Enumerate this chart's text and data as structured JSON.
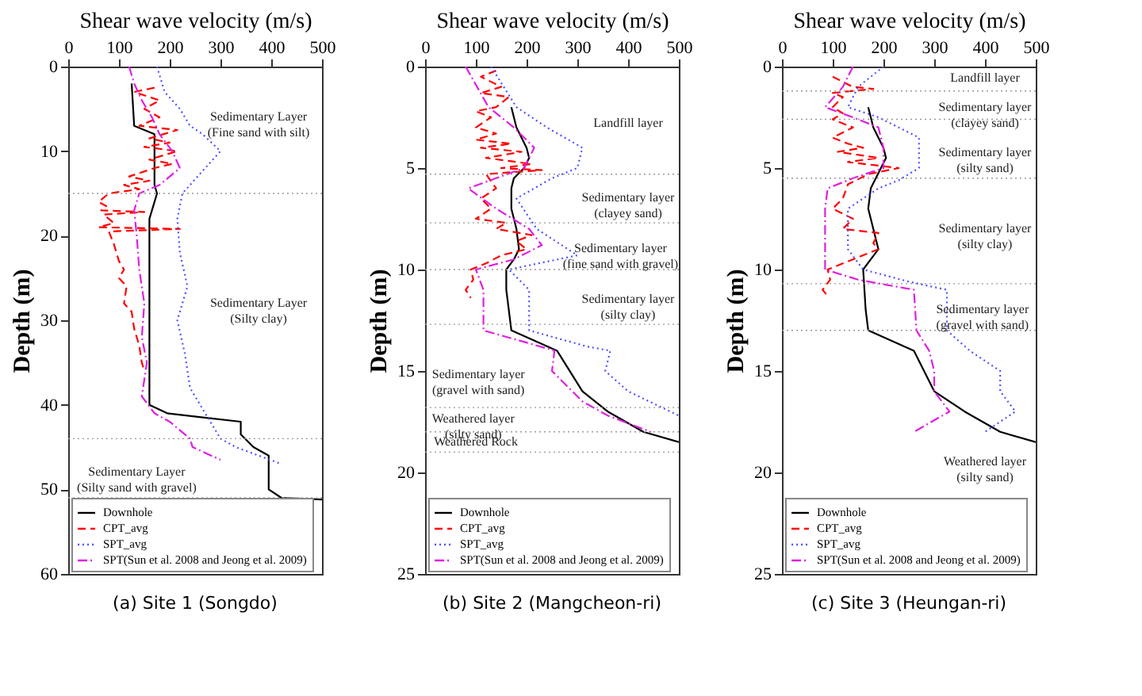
{
  "chart_data": [
    {
      "type": "line",
      "title": "(a) Site 1 (Songdo)",
      "xlabel": "Shear wave velocity (m/s)",
      "ylabel": "Depth (m)",
      "xlim": [
        0,
        500
      ],
      "xticks": [
        0,
        100,
        200,
        300,
        400,
        500
      ],
      "ylim": [
        60,
        0
      ],
      "yticks": [
        0,
        10,
        20,
        30,
        40,
        50,
        60
      ],
      "legend": "bottom left",
      "series": [
        {
          "name": "Downhole",
          "color": "#000000",
          "line_style": "solid",
          "x": [
            125,
            130,
            170,
            170,
            175,
            165,
            160,
            160,
            195,
            340,
            340,
            365,
            395,
            395,
            420,
            500
          ],
          "values": [
            2,
            7,
            8,
            14,
            15,
            17,
            18,
            40,
            41,
            42,
            43.5,
            45,
            46,
            50,
            51,
            51.2
          ]
        },
        {
          "name": "CPT_avg",
          "color": "#ff0000",
          "line_style": "dashed",
          "x": [
            170,
            130,
            180,
            150,
            180,
            140,
            215,
            160,
            200,
            150,
            215,
            160,
            205,
            170,
            120,
            160,
            110,
            140,
            80,
            60,
            75,
            65,
            150,
            70,
            90,
            60,
            220,
            80,
            90,
            100,
            110,
            100,
            115,
            110,
            125,
            130,
            140,
            145,
            150
          ],
          "values": [
            2.5,
            3,
            4,
            5,
            6,
            7,
            7.5,
            8.5,
            9,
            9.5,
            10,
            11,
            11.5,
            12,
            13,
            13.5,
            14,
            14.5,
            15,
            16,
            16.5,
            17,
            17.2,
            17.5,
            18.5,
            19,
            19.2,
            19.5,
            21,
            23,
            24,
            25,
            26,
            28,
            29,
            31,
            33,
            35,
            36
          ]
        },
        {
          "name": "SPT_avg",
          "color": "#5050ff",
          "line_style": "dotted",
          "x": [
            175,
            190,
            220,
            240,
            265,
            300,
            270,
            225,
            215,
            220,
            235,
            215,
            230,
            240,
            270,
            300,
            330,
            420
          ],
          "values": [
            0,
            3,
            5,
            7,
            8,
            10,
            12,
            15,
            18,
            22,
            26,
            30,
            34,
            38,
            41,
            44,
            45,
            47
          ]
        },
        {
          "name": "SPT(Sun et al. 2008 and Jeong et al. 2009)",
          "color": "#e020e0",
          "line_style": "dashdot",
          "x": [
            120,
            130,
            145,
            165,
            180,
            205,
            220,
            180,
            140,
            130,
            135,
            140,
            150,
            145,
            155,
            145,
            170,
            200,
            240,
            245,
            300
          ],
          "values": [
            0,
            2,
            4,
            6,
            8,
            10,
            12,
            14,
            15,
            17,
            20,
            24,
            28,
            32,
            35,
            39,
            41,
            42,
            44,
            45,
            46.5
          ]
        }
      ],
      "ref_lines": [
        {
          "axis": "y",
          "value": 15,
          "line_style": "dotted",
          "color": "#999999"
        },
        {
          "axis": "y",
          "value": 44,
          "line_style": "dotted",
          "color": "#999999"
        },
        {
          "axis": "y",
          "value": 51,
          "line_style": "dotted",
          "color": "#999999"
        }
      ],
      "annotations": [
        "Sedimentary Layer\n(Fine sand with silt)",
        "Sedimentary Layer\n(Silty clay)",
        "Sedimentary Layer\n(Silty sand with gravel)"
      ]
    },
    {
      "type": "line",
      "title": "(b) Site 2 (Mangcheon-ri)",
      "xlabel": "Shear wave velocity (m/s)",
      "ylabel": "Depth (m)",
      "xlim": [
        0,
        500
      ],
      "xticks": [
        0,
        100,
        200,
        300,
        400,
        500
      ],
      "ylim": [
        25,
        0
      ],
      "yticks": [
        0,
        5,
        10,
        15,
        20,
        25
      ],
      "legend": "bottom left",
      "series": [
        {
          "name": "Downhole",
          "color": "#000000",
          "line_style": "solid",
          "x": [
            170,
            180,
            200,
            205,
            195,
            175,
            170,
            170,
            180,
            185,
            175,
            160,
            160,
            165,
            170,
            260,
            310,
            360,
            430,
            500
          ],
          "values": [
            2,
            3,
            4,
            4.5,
            5,
            5.5,
            6,
            7,
            8,
            9,
            9.5,
            10,
            11,
            12,
            13,
            14,
            16,
            17,
            18,
            18.5
          ]
        },
        {
          "name": "CPT_avg",
          "color": "#ff0000",
          "line_style": "dashed",
          "x": [
            140,
            110,
            150,
            110,
            165,
            140,
            100,
            130,
            100,
            140,
            100,
            170,
            110,
            190,
            120,
            210,
            150,
            230,
            120,
            140,
            110,
            130,
            100,
            160,
            140,
            210,
            180,
            200,
            150,
            120,
            90,
            95,
            80,
            90
          ],
          "values": [
            0.2,
            0.5,
            1,
            1.3,
            1.5,
            2,
            2.2,
            2.5,
            3,
            3.3,
            3.6,
            3.8,
            4,
            4.2,
            4.5,
            4.8,
            5,
            5.1,
            5.3,
            6,
            6.5,
            7,
            7.5,
            7.7,
            8,
            8.3,
            8.6,
            9,
            9.3,
            9.7,
            10,
            10.5,
            11,
            11.4
          ]
        },
        {
          "name": "SPT_avg",
          "color": "#5050ff",
          "line_style": "dotted",
          "x": [
            130,
            180,
            240,
            310,
            300,
            250,
            180,
            220,
            300,
            165,
            205,
            205,
            320,
            365,
            355,
            400,
            500
          ],
          "values": [
            0,
            2,
            3,
            4,
            5,
            5.5,
            6.5,
            8,
            9.3,
            10,
            11,
            13,
            13.8,
            14,
            15,
            16,
            17.2
          ]
        },
        {
          "name": "SPT(Sun et al. 2008 and Jeong et al. 2009)",
          "color": "#e020e0",
          "line_style": "dashdot",
          "x": [
            80,
            125,
            175,
            215,
            195,
            140,
            85,
            140,
            205,
            230,
            175,
            100,
            115,
            115,
            200,
            255,
            250,
            310,
            360,
            445
          ],
          "values": [
            0,
            2,
            3,
            4,
            5,
            5.5,
            6,
            7,
            8,
            8.8,
            9.5,
            10,
            11,
            13,
            13.6,
            14,
            15,
            16.5,
            17.2,
            18
          ]
        }
      ],
      "ref_lines": [
        {
          "axis": "y",
          "value": 5.3,
          "line_style": "dotted",
          "color": "#999999"
        },
        {
          "axis": "y",
          "value": 7.7,
          "line_style": "dotted",
          "color": "#999999"
        },
        {
          "axis": "y",
          "value": 10,
          "line_style": "dotted",
          "color": "#999999"
        },
        {
          "axis": "y",
          "value": 12.7,
          "line_style": "dotted",
          "color": "#999999"
        },
        {
          "axis": "y",
          "value": 16.8,
          "line_style": "dotted",
          "color": "#999999"
        },
        {
          "axis": "y",
          "value": 18,
          "line_style": "dotted",
          "color": "#999999"
        },
        {
          "axis": "y",
          "value": 19,
          "line_style": "dotted",
          "color": "#999999"
        }
      ],
      "annotations": [
        "Landfill layer",
        "Sedimentary layer\n(clayey sand)",
        "Sedimentary layer\n(fine sand with gravel)",
        "Sedimentary layer\n(silty clay)",
        "Sedimentary layer\n(gravel with sand)",
        "Weathered layer\n(silty sand)",
        "Weathered Rock"
      ]
    },
    {
      "type": "line",
      "title": "(c) Site 3 (Heungan-ri)",
      "xlabel": "Shear wave velocity (m/s)",
      "ylabel": "Depth (m)",
      "xlim": [
        0,
        500
      ],
      "xticks": [
        0,
        100,
        200,
        300,
        400,
        500
      ],
      "ylim": [
        25,
        0
      ],
      "yticks": [
        0,
        5,
        10,
        15,
        20,
        25
      ],
      "legend": "bottom left",
      "series": [
        {
          "name": "Downhole",
          "color": "#000000",
          "line_style": "solid",
          "x": [
            170,
            180,
            200,
            205,
            195,
            175,
            170,
            180,
            190,
            175,
            160,
            165,
            170,
            260,
            300,
            360,
            430,
            500
          ],
          "values": [
            2,
            3,
            4,
            4.5,
            5,
            6,
            7,
            8,
            9,
            9.5,
            10,
            12,
            13,
            14,
            16,
            17,
            18,
            18.5
          ]
        },
        {
          "name": "CPT_avg",
          "color": "#ff0000",
          "line_style": "dashed",
          "x": [
            100,
            140,
            180,
            100,
            120,
            100,
            120,
            100,
            140,
            100,
            130,
            160,
            110,
            190,
            130,
            230,
            170,
            130,
            120,
            100,
            140,
            120,
            190,
            180,
            190,
            150,
            120,
            90,
            95,
            80,
            90
          ],
          "values": [
            0.5,
            1,
            1.1,
            1.3,
            1.5,
            2,
            2.3,
            2.6,
            3,
            3.5,
            3.8,
            4,
            4.2,
            4.5,
            4.7,
            5,
            5.3,
            5.8,
            6.5,
            7,
            7.5,
            8,
            8.2,
            8.7,
            9,
            9.4,
            9.7,
            10,
            10.5,
            11,
            11.3
          ]
        },
        {
          "name": "SPT_avg",
          "color": "#5050ff",
          "line_style": "dotted",
          "x": [
            200,
            150,
            130,
            190,
            270,
            270,
            230,
            190,
            130,
            130,
            160,
            250,
            325,
            325,
            370,
            430,
            430,
            460,
            400
          ],
          "values": [
            0,
            1,
            2,
            2.5,
            3.5,
            5,
            5.6,
            6,
            7,
            9,
            10,
            10.6,
            11,
            13,
            14,
            15,
            16,
            17,
            18
          ]
        },
        {
          "name": "SPT(Sun et al. 2008 and Jeong et al. 2009)",
          "color": "#e020e0",
          "line_style": "dashdot",
          "x": [
            140,
            120,
            85,
            140,
            190,
            200,
            200,
            140,
            90,
            85,
            85,
            150,
            260,
            265,
            290,
            300,
            300,
            330,
            260
          ],
          "values": [
            0,
            1,
            2,
            2.5,
            3,
            4,
            5,
            5.5,
            6,
            7,
            10,
            10.5,
            11,
            13,
            14,
            15,
            16,
            17,
            18
          ]
        }
      ],
      "ref_lines": [
        {
          "axis": "y",
          "value": 1.2,
          "line_style": "dotted",
          "color": "#999999"
        },
        {
          "axis": "y",
          "value": 2.6,
          "line_style": "dotted",
          "color": "#999999"
        },
        {
          "axis": "y",
          "value": 5.5,
          "line_style": "dotted",
          "color": "#999999"
        },
        {
          "axis": "y",
          "value": 10.7,
          "line_style": "dotted",
          "color": "#999999"
        },
        {
          "axis": "y",
          "value": 13,
          "line_style": "dotted",
          "color": "#999999"
        }
      ],
      "annotations": [
        "Landfill layer",
        "Sedimentary layer\n(clayey sand)",
        "Sedimentary layer\n(silty sand)",
        "Sedimentary layer\n(silty clay)",
        "Sedimentary layer\n(gravel with sand)",
        "Weathered layer\n(silty sand)"
      ]
    }
  ]
}
